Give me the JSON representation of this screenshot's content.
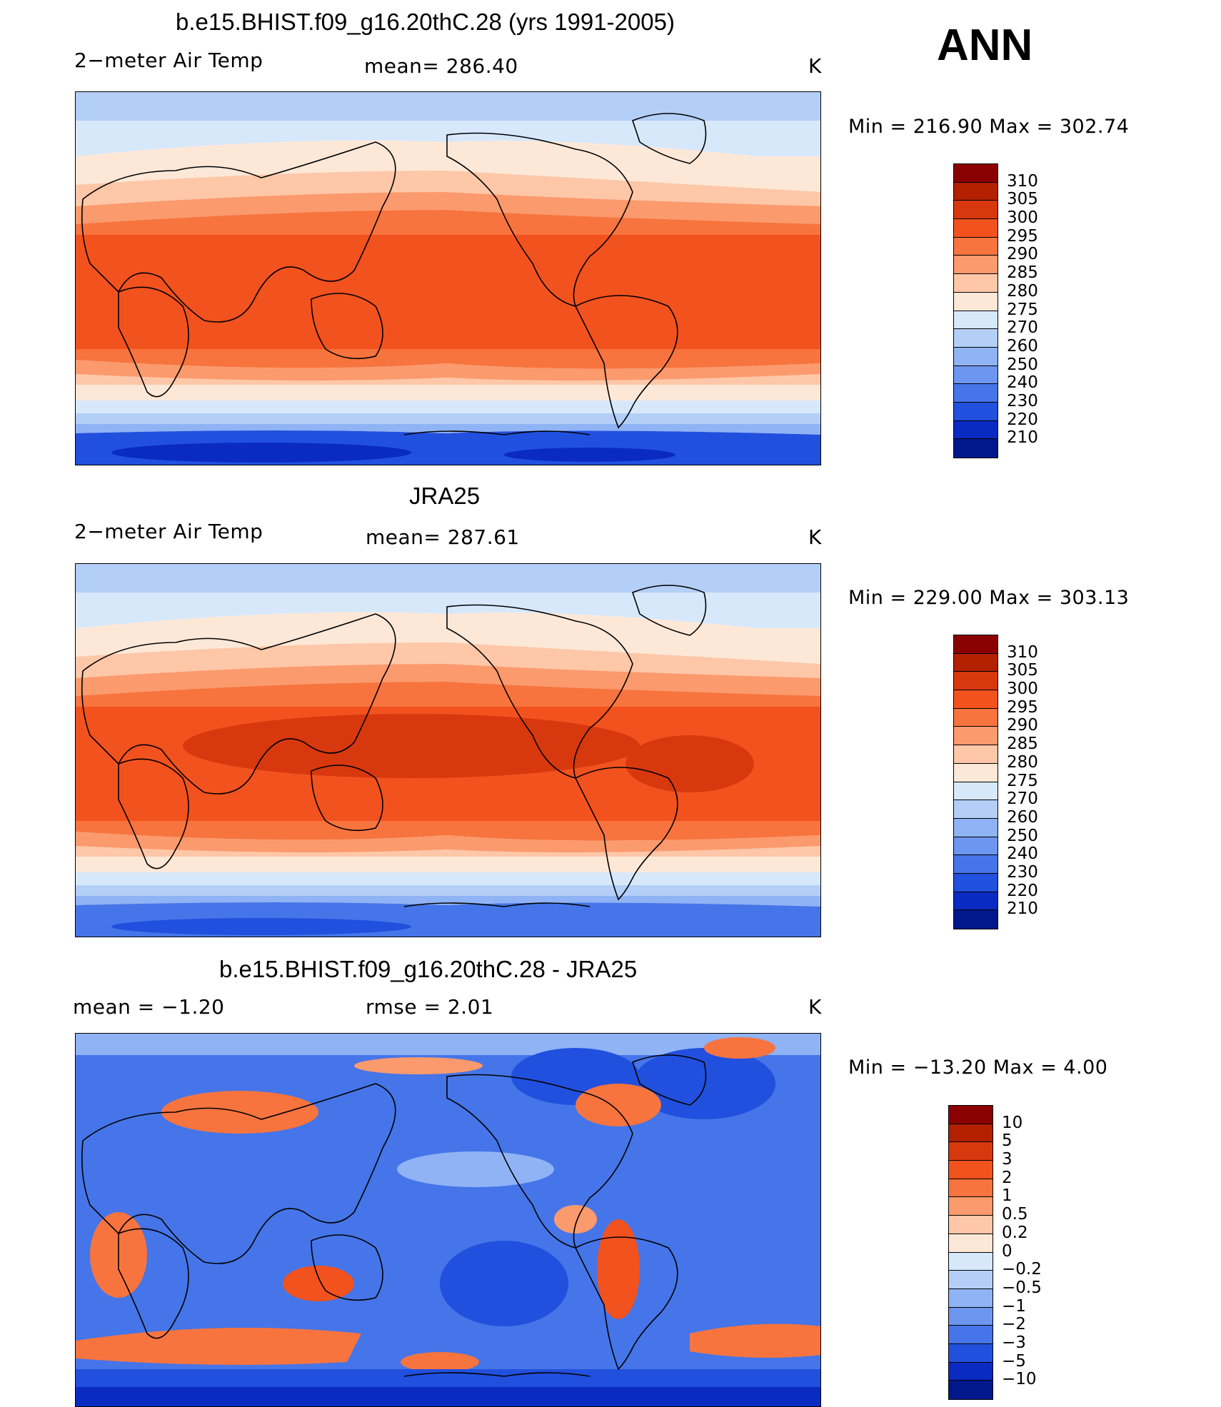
{
  "season": "ANN",
  "panels": [
    {
      "title": "b.e15.BHIST.f09_g16.20thC.28 (yrs 1991-2005)",
      "left_text": "2−meter Air Temp",
      "center_text": "mean=  286.40",
      "units": "K",
      "minmax": "Min  =  216.90  Max  =  302.74",
      "colorbar_labels": [
        "310",
        "305",
        "300",
        "295",
        "290",
        "285",
        "280",
        "275",
        "270",
        "260",
        "250",
        "240",
        "230",
        "220",
        "210"
      ]
    },
    {
      "title": "JRA25",
      "left_text": "2−meter Air Temp",
      "center_text": "mean=  287.61",
      "units": "K",
      "minmax": "Min  =  229.00  Max  =  303.13",
      "colorbar_labels": [
        "310",
        "305",
        "300",
        "295",
        "290",
        "285",
        "280",
        "275",
        "270",
        "260",
        "250",
        "240",
        "230",
        "220",
        "210"
      ]
    },
    {
      "title": "b.e15.BHIST.f09_g16.20thC.28 - JRA25",
      "left_text": "mean  =    −1.20",
      "center_text": "rmse  =     2.01",
      "units": "K",
      "minmax": "Min  =  −13.20  Max  =      4.00",
      "colorbar_labels": [
        "10",
        "5",
        "3",
        "2",
        "1",
        "0.5",
        "0.2",
        "0",
        "−0.2",
        "−0.5",
        "−1",
        "−2",
        "−3",
        "−5",
        "−10"
      ]
    }
  ],
  "palette": [
    "#8b0000",
    "#b22000",
    "#d8380e",
    "#f2521e",
    "#f7743f",
    "#fb9a6d",
    "#fdc7a8",
    "#fde8d8",
    "#d7e8fb",
    "#b4cff7",
    "#8fb3f5",
    "#6c96ef",
    "#4575e8",
    "#2150de",
    "#0a2bc2",
    "#00188c"
  ]
}
